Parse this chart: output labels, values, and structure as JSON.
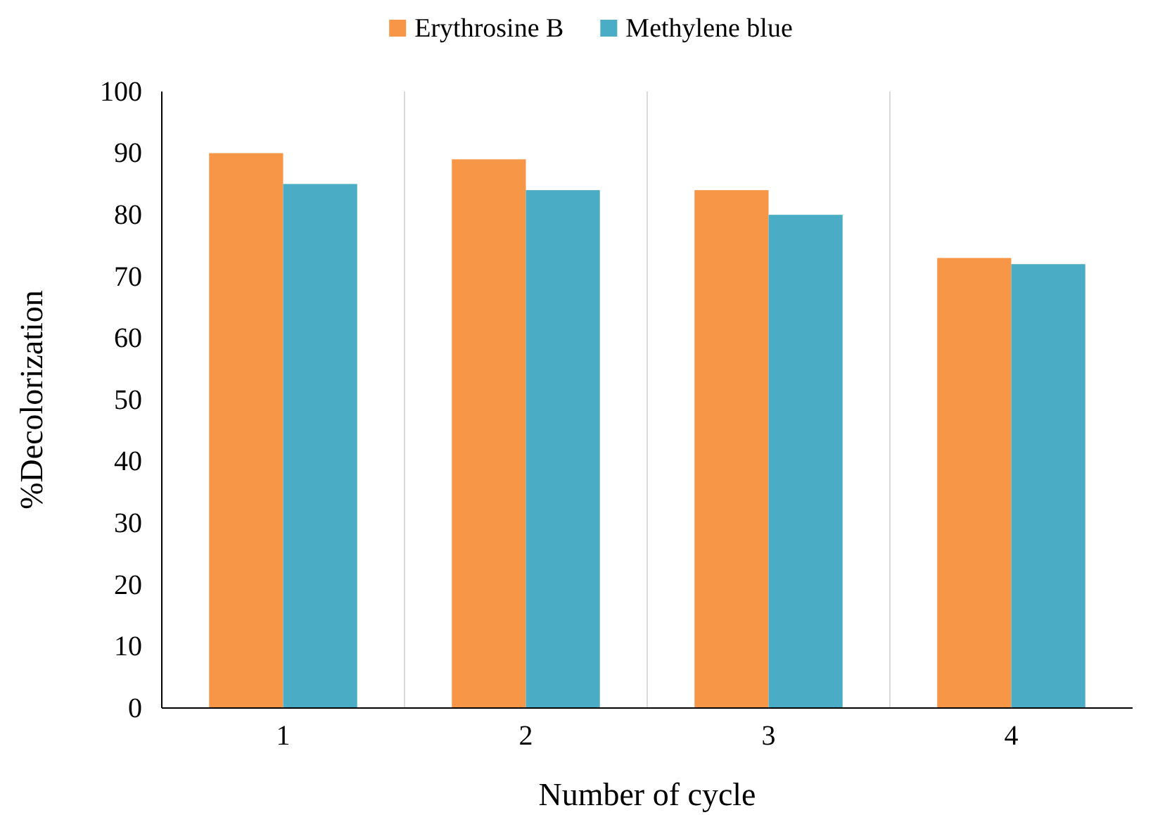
{
  "chart_data": {
    "type": "bar",
    "xlabel": "Number of cycle",
    "ylabel": "%Decolorization",
    "categories": [
      "1",
      "2",
      "3",
      "4"
    ],
    "series": [
      {
        "name": "Erythrosine B",
        "color": "#f79646",
        "values": [
          90,
          89,
          84,
          73
        ]
      },
      {
        "name": "Methylene blue",
        "color": "#4bacc6",
        "values": [
          85,
          84,
          80,
          72
        ]
      }
    ],
    "ylim": [
      0,
      100
    ],
    "yticks": [
      0,
      10,
      20,
      30,
      40,
      50,
      60,
      70,
      80,
      90,
      100
    ],
    "grid": "x",
    "legend": "top"
  }
}
